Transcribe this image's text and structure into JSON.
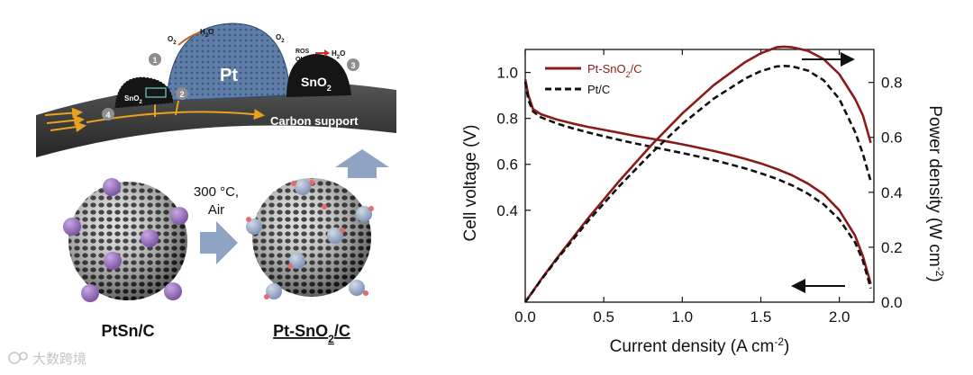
{
  "schematic": {
    "support_label": "Carbon support",
    "pt_label": "Pt",
    "sno2_label": "SnO",
    "sno2_sub": "2",
    "small_sno2_label": "SnO",
    "small_sno2_sub": "2",
    "o2_left": "O",
    "o2_left_sub": "2",
    "h2o_left": "H",
    "h2o_left_mid": "2",
    "h2o_left_end": "O",
    "o2_right": "O",
    "o2_right_sub": "2",
    "ros_label": "ROS",
    "oh_label": "OH",
    "h2o_right": "H",
    "h2o_right_mid": "2",
    "h2o_right_end": "O",
    "steps": [
      "1",
      "2",
      "3",
      "4"
    ],
    "anneal_line1": "300 °C,",
    "anneal_line2": "Air",
    "left_particle_label": "PtSn/C",
    "right_particle_label": "Pt-SnO",
    "right_particle_sub": "2",
    "right_particle_end": "/C",
    "watermark": "大数跨境",
    "colors": {
      "support": "#3a3a3a",
      "pt_dome": "#5f7ea8",
      "sno2": "#151515",
      "ptsn_particle": "#a07cc0",
      "sno2_particle": "#9fb2cc",
      "arrow": "#8ea4c2",
      "flow": "#e8a21f"
    }
  },
  "chart_data": {
    "type": "line",
    "xlabel": "Current density (A cm",
    "xlabel_sup": "-2",
    "xlabel_end": ")",
    "ylabel_left": "Cell voltage (V)",
    "ylabel_right": "Power density (W cm",
    "ylabel_right_sup": "-2",
    "ylabel_right_end": ")",
    "xlim": [
      0,
      2.22
    ],
    "ylim_left": [
      0.0,
      1.1
    ],
    "ylim_right": [
      0.0,
      0.92
    ],
    "xticks": [
      "0.0",
      "0.5",
      "1.0",
      "1.5",
      "2.0"
    ],
    "xtick_values": [
      0,
      0.5,
      1.0,
      1.5,
      2.0
    ],
    "yticks_left": [
      "0.4",
      "0.6",
      "0.8",
      "1.0"
    ],
    "ytick_left_values": [
      0.4,
      0.6,
      0.8,
      1.0
    ],
    "yticks_right": [
      "0.0",
      "0.2",
      "0.4",
      "0.6",
      "0.8"
    ],
    "ytick_right_values": [
      0.0,
      0.2,
      0.4,
      0.6,
      0.8
    ],
    "legend": [
      {
        "label": "Pt-SnO",
        "sub": "2",
        "end": "/C",
        "color": "#8b1a1a",
        "style": "solid"
      },
      {
        "label": "Pt/C",
        "sub": "",
        "end": "",
        "color": "#111111",
        "style": "dashed"
      }
    ],
    "series": [
      {
        "name": "Pt-SnO2/C voltage",
        "axis": "left",
        "color": "#8b1a1a",
        "style": "solid",
        "x": [
          0,
          0.02,
          0.05,
          0.1,
          0.2,
          0.3,
          0.4,
          0.5,
          0.6,
          0.7,
          0.8,
          0.9,
          1.0,
          1.1,
          1.2,
          1.3,
          1.4,
          1.5,
          1.6,
          1.7,
          1.8,
          1.9,
          2.0,
          2.1,
          2.15,
          2.2
        ],
        "y": [
          0.97,
          0.9,
          0.84,
          0.818,
          0.795,
          0.778,
          0.763,
          0.75,
          0.737,
          0.724,
          0.712,
          0.7,
          0.687,
          0.673,
          0.658,
          0.642,
          0.624,
          0.604,
          0.58,
          0.552,
          0.516,
          0.47,
          0.4,
          0.29,
          0.2,
          0.08
        ]
      },
      {
        "name": "Pt/C voltage",
        "axis": "left",
        "color": "#111111",
        "style": "dashed",
        "x": [
          0,
          0.02,
          0.05,
          0.1,
          0.2,
          0.3,
          0.4,
          0.5,
          0.6,
          0.7,
          0.8,
          0.9,
          1.0,
          1.1,
          1.2,
          1.3,
          1.4,
          1.5,
          1.6,
          1.7,
          1.8,
          1.9,
          2.0,
          2.1,
          2.15,
          2.2
        ],
        "y": [
          0.96,
          0.88,
          0.83,
          0.805,
          0.778,
          0.757,
          0.739,
          0.722,
          0.706,
          0.691,
          0.677,
          0.663,
          0.649,
          0.634,
          0.618,
          0.601,
          0.582,
          0.561,
          0.537,
          0.508,
          0.472,
          0.426,
          0.36,
          0.26,
          0.18,
          0.06
        ]
      },
      {
        "name": "Pt-SnO2/C power",
        "axis": "right",
        "color": "#8b1a1a",
        "style": "solid",
        "x": [
          0,
          0.1,
          0.2,
          0.4,
          0.6,
          0.8,
          1.0,
          1.2,
          1.4,
          1.5,
          1.6,
          1.65,
          1.7,
          1.8,
          1.9,
          2.0,
          2.1,
          2.15,
          2.2
        ],
        "y": [
          0.0,
          0.082,
          0.159,
          0.305,
          0.442,
          0.57,
          0.687,
          0.79,
          0.874,
          0.906,
          0.928,
          0.93,
          0.928,
          0.915,
          0.885,
          0.83,
          0.74,
          0.68,
          0.58
        ]
      },
      {
        "name": "Pt/C power",
        "axis": "right",
        "color": "#111111",
        "style": "dashed",
        "x": [
          0,
          0.1,
          0.2,
          0.4,
          0.6,
          0.8,
          1.0,
          1.2,
          1.4,
          1.5,
          1.6,
          1.65,
          1.7,
          1.8,
          1.9,
          2.0,
          2.1,
          2.15,
          2.2
        ],
        "y": [
          0.0,
          0.08,
          0.155,
          0.295,
          0.423,
          0.541,
          0.649,
          0.741,
          0.814,
          0.841,
          0.858,
          0.86,
          0.858,
          0.843,
          0.808,
          0.74,
          0.62,
          0.54,
          0.44
        ]
      }
    ],
    "annotations": [
      {
        "kind": "arrow",
        "direction": "right",
        "target_axis": "right"
      },
      {
        "kind": "arrow",
        "direction": "left",
        "target_axis": "left"
      }
    ]
  }
}
